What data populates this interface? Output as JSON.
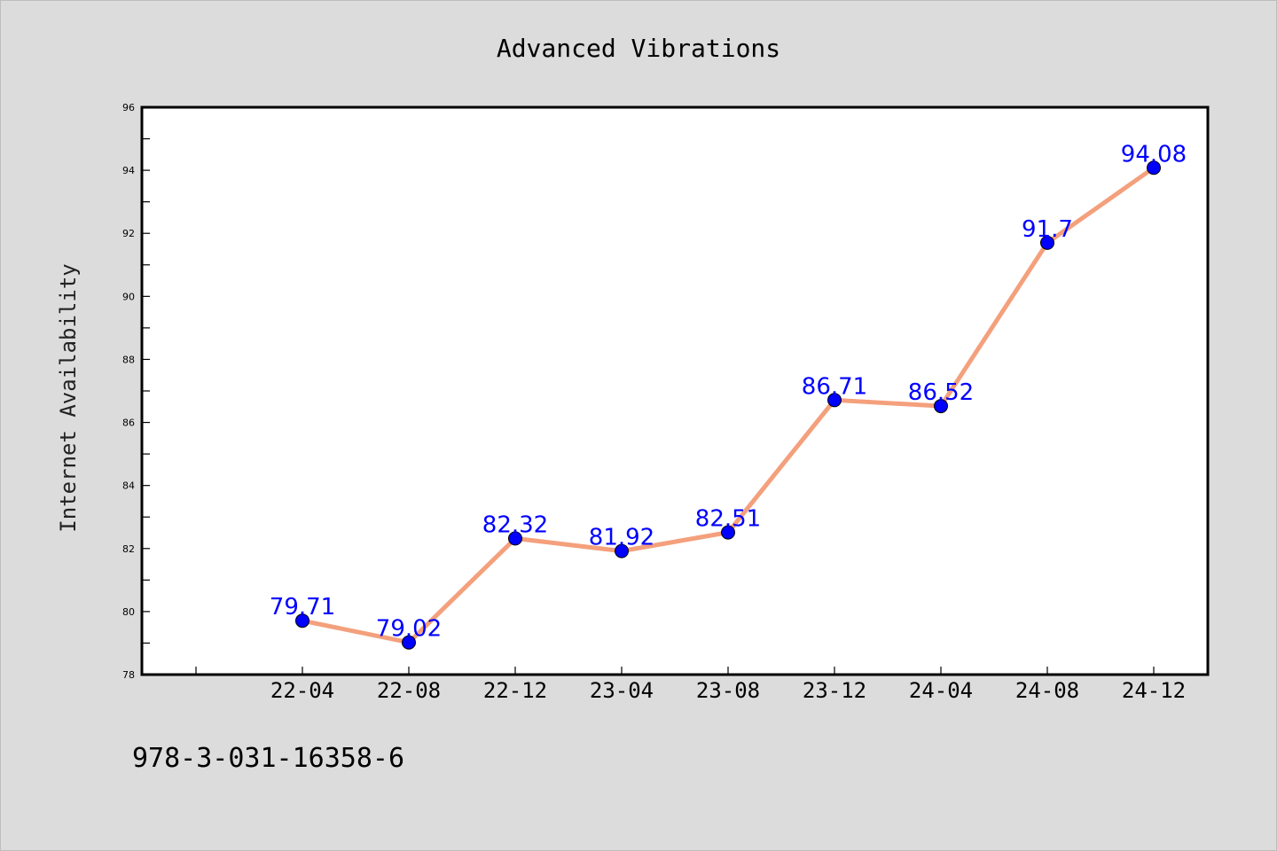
{
  "chart_data": {
    "type": "line",
    "title": "Advanced Vibrations",
    "xlabel": "",
    "ylabel": "Internet Availability",
    "categories": [
      "22-04",
      "22-08",
      "22-12",
      "23-04",
      "23-08",
      "23-12",
      "24-04",
      "24-08",
      "24-12"
    ],
    "series": [
      {
        "values": [
          79.71,
          79.02,
          82.32,
          81.92,
          82.51,
          86.71,
          86.52,
          91.7,
          94.08
        ],
        "labels": [
          "79.71",
          "79.02",
          "82.32",
          "81.92",
          "82.51",
          "86.71",
          "86.52",
          "91.7",
          "94.08"
        ],
        "line_color": "#f4a07c",
        "marker_color": "#0000ff"
      }
    ],
    "ylim": [
      78,
      96
    ],
    "yticks": [
      "78",
      "80",
      "82",
      "84",
      "86",
      "88",
      "90",
      "92",
      "94",
      "96"
    ],
    "grid": false,
    "legend": "none"
  },
  "footer": {
    "isbn": "978-3-031-16358-6"
  },
  "colors": {
    "background": "#dcdcdc",
    "plot_background": "#ffffff",
    "line": "#f4a07c",
    "marker": "#0000ff",
    "data_label": "#0000ff"
  }
}
